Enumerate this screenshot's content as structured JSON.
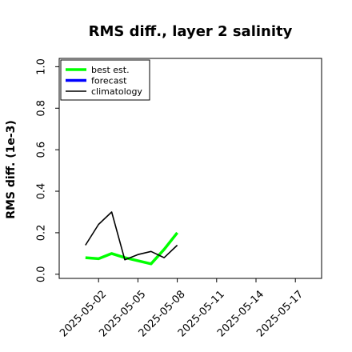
{
  "chart_data": {
    "type": "line",
    "title": "RMS diff., layer 2 salinity",
    "xlabel": "",
    "ylabel": "RMS diff. (1e-3)",
    "x_ticks": [
      "2025-05-02",
      "2025-05-05",
      "2025-05-08",
      "2025-05-11",
      "2025-05-14",
      "2025-05-17"
    ],
    "highlight_tick": "2025-05-08",
    "highlight_color": "#228b22",
    "xlim": [
      "2025-04-29",
      "2025-05-19"
    ],
    "y_ticks": [
      "0.0",
      "0.2",
      "0.4",
      "0.6",
      "0.8",
      "1.0"
    ],
    "ylim": [
      -0.02,
      1.04
    ],
    "grid": false,
    "legend_position": "top-left",
    "series": [
      {
        "name": "best est.",
        "color": "#00ff00",
        "x": [
          "2025-05-01",
          "2025-05-02",
          "2025-05-03",
          "2025-05-04",
          "2025-05-05",
          "2025-05-06",
          "2025-05-07",
          "2025-05-08"
        ],
        "y": [
          0.08,
          0.075,
          0.1,
          0.08,
          0.065,
          0.05,
          0.12,
          0.2
        ]
      },
      {
        "name": "forecast",
        "color": "#0000ff",
        "x": [],
        "y": []
      },
      {
        "name": "climatology",
        "color": "#000000",
        "x": [
          "2025-05-01",
          "2025-05-02",
          "2025-05-03",
          "2025-05-04",
          "2025-05-05",
          "2025-05-06",
          "2025-05-07",
          "2025-05-08"
        ],
        "y": [
          0.14,
          0.24,
          0.3,
          0.07,
          0.095,
          0.11,
          0.08,
          0.14
        ]
      }
    ]
  }
}
